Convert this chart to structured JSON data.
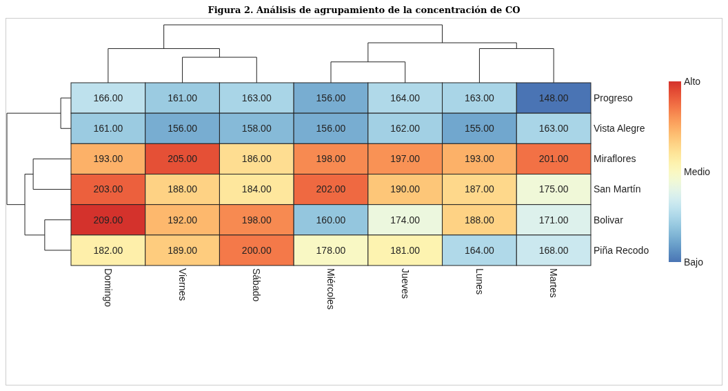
{
  "chart_data": {
    "type": "heatmap",
    "title": "Figura 2. Análisis de agrupamiento de la concentración de CO",
    "categories": [
      "Domingo",
      "Viernes",
      "Sábado",
      "Miércoles",
      "Jueves",
      "Lunes",
      "Martes"
    ],
    "y_categories": [
      "Progreso",
      "Vista Alegre",
      "Miraflores",
      "San Martín",
      "Bolivar",
      "Piña Recodo"
    ],
    "cells": [
      [
        166,
        161,
        163,
        156,
        164,
        163,
        148
      ],
      [
        161,
        156,
        158,
        156,
        162,
        155,
        163
      ],
      [
        193,
        205,
        186,
        198,
        197,
        193,
        201
      ],
      [
        203,
        188,
        184,
        202,
        190,
        187,
        175
      ],
      [
        209,
        192,
        198,
        160,
        174,
        188,
        171
      ],
      [
        182,
        189,
        200,
        178,
        181,
        164,
        168
      ]
    ],
    "cell_labels": [
      [
        "166.00",
        "161.00",
        "163.00",
        "156.00",
        "164.00",
        "163.00",
        "148.00"
      ],
      [
        "161.00",
        "156.00",
        "158.00",
        "156.00",
        "162.00",
        "155.00",
        "163.00"
      ],
      [
        "193.00",
        "205.00",
        "186.00",
        "198.00",
        "197.00",
        "193.00",
        "201.00"
      ],
      [
        "203.00",
        "188.00",
        "184.00",
        "202.00",
        "190.00",
        "187.00",
        "175.00"
      ],
      [
        "209.00",
        "192.00",
        "198.00",
        "160.00",
        "174.00",
        "188.00",
        "171.00"
      ],
      [
        "182.00",
        "189.00",
        "200.00",
        "178.00",
        "181.00",
        "164.00",
        "168.00"
      ]
    ],
    "clim": [
      148,
      209
    ],
    "cticks": [
      {
        "value": 209,
        "label": "Alto"
      },
      {
        "value": 178.5,
        "label": "Medio"
      },
      {
        "value": 148,
        "label": "Bajo"
      }
    ]
  }
}
